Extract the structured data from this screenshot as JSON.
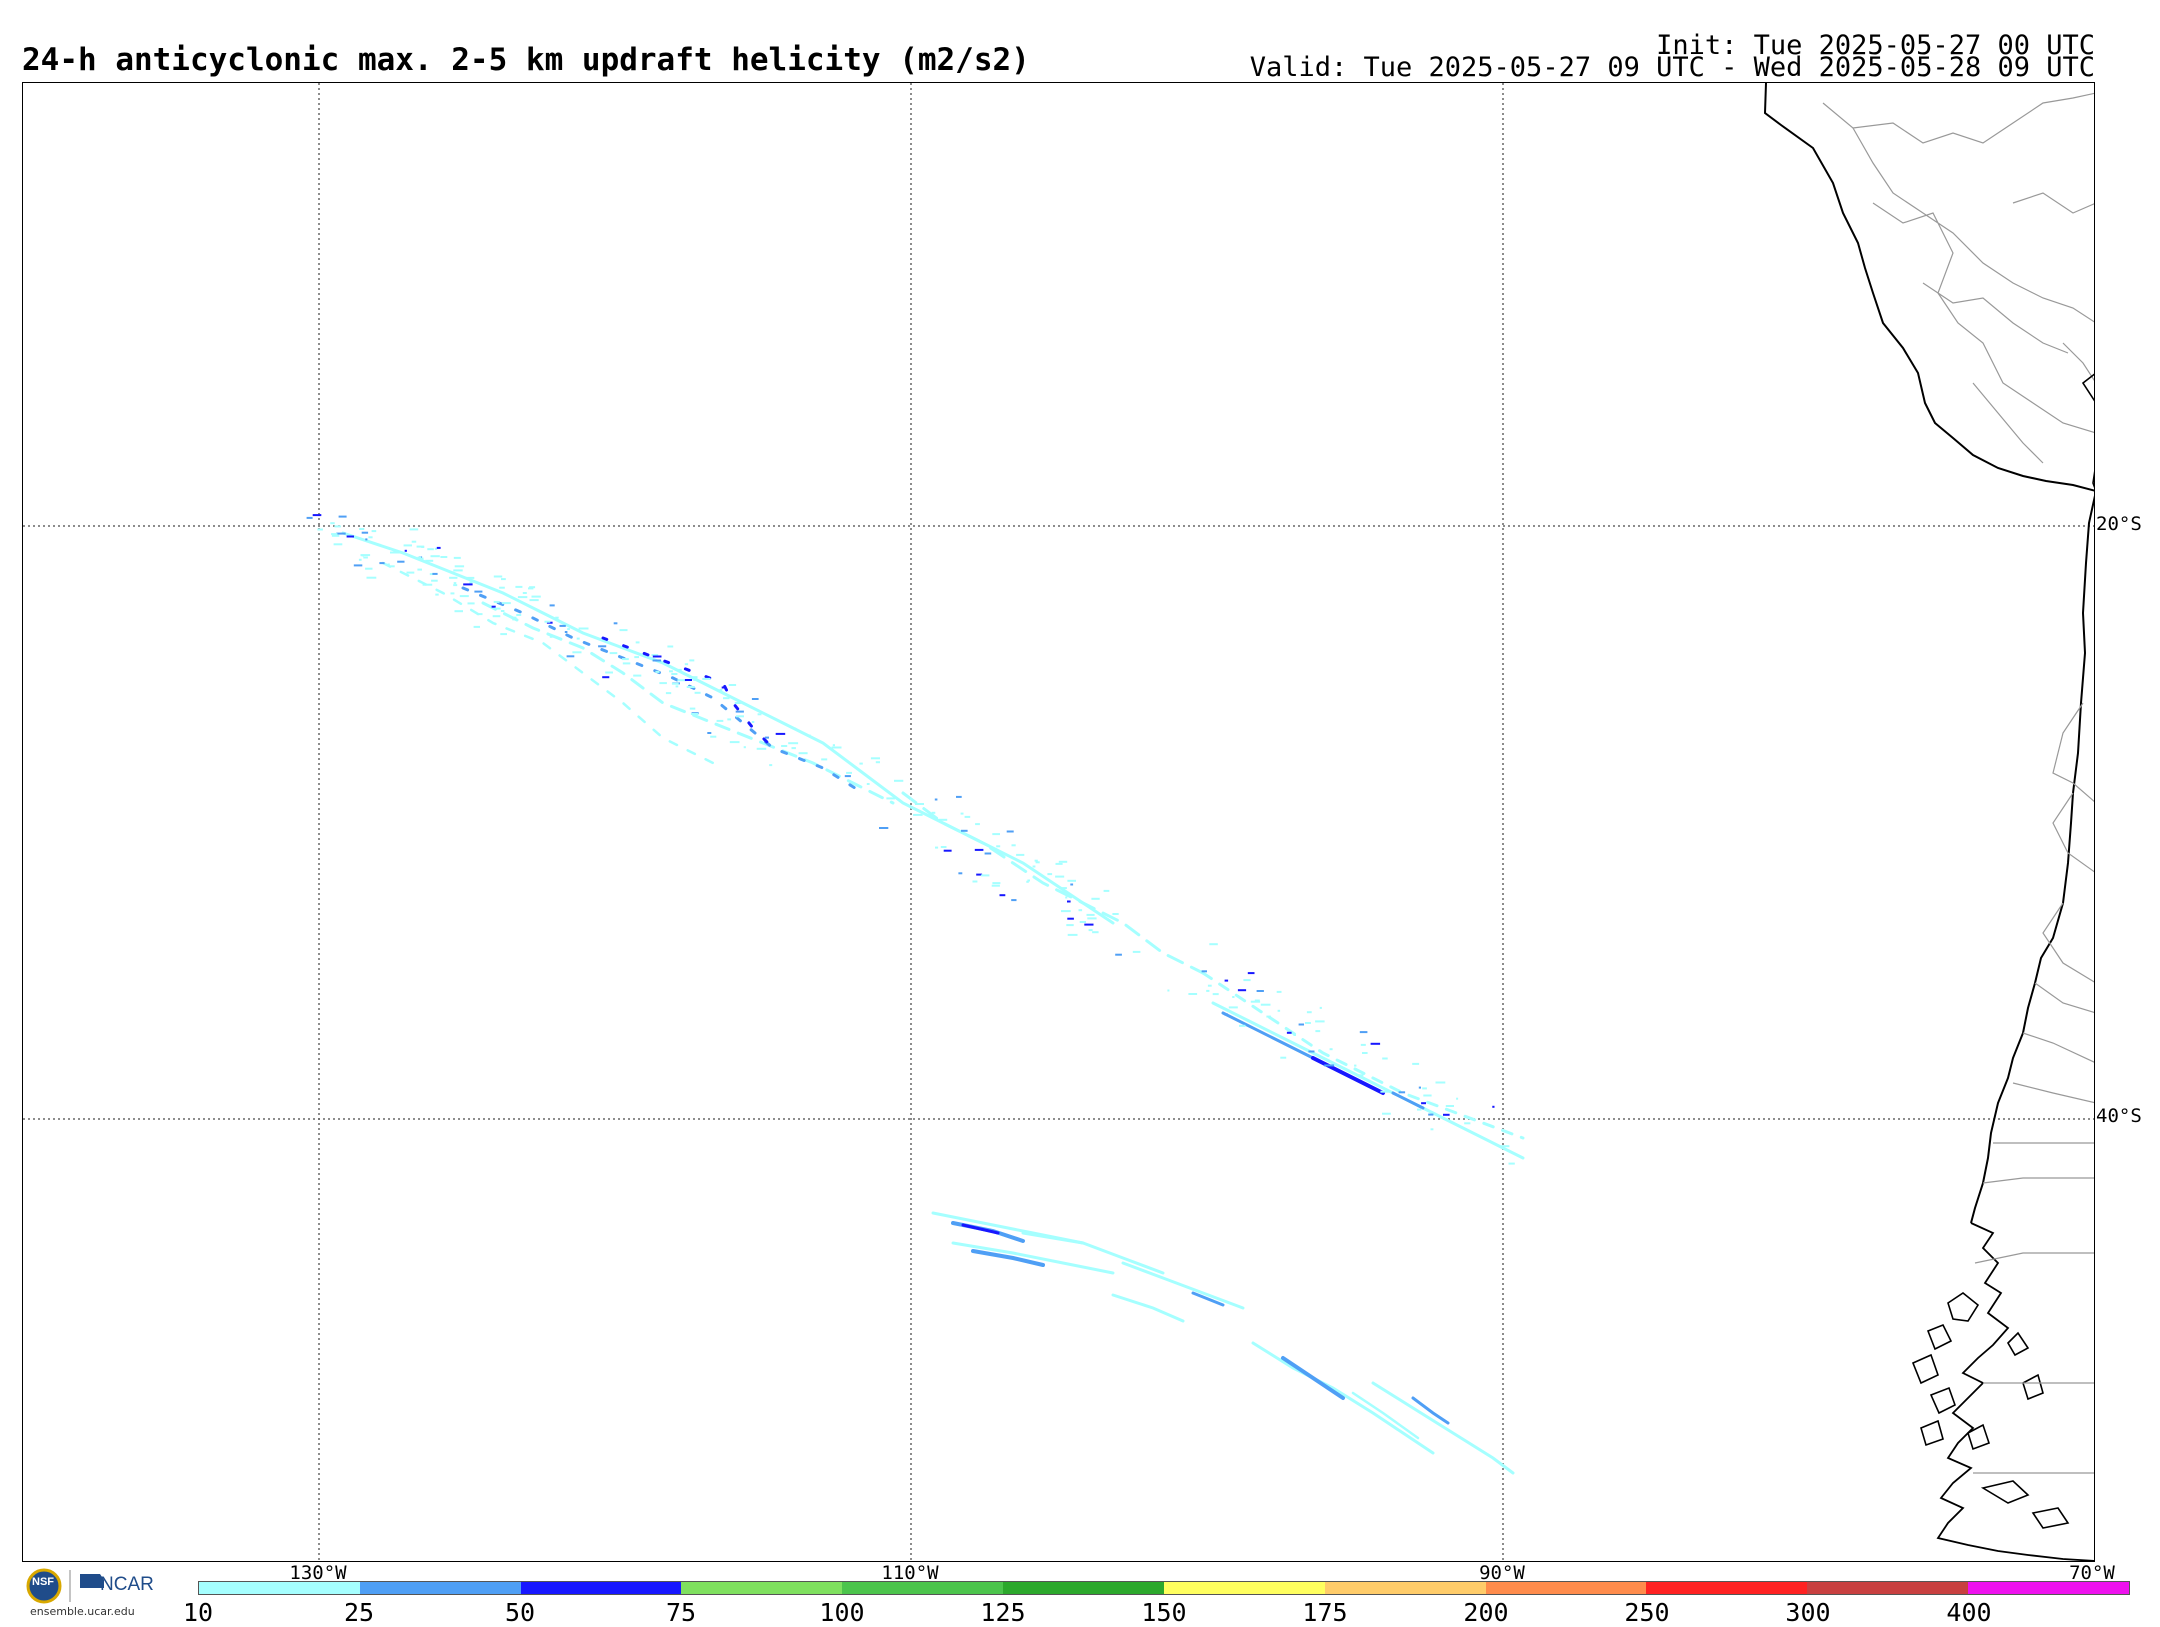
{
  "header": {
    "title": "24-h anticyclonic max. 2-5 km updraft helicity (m2/s2)",
    "init": "Init: Tue 2025-05-27 00 UTC",
    "valid": "Valid: Tue 2025-05-27 09 UTC - Wed 2025-05-28 09 UTC"
  },
  "map": {
    "lat_labels": [
      "20°S",
      "40°S"
    ],
    "lon_labels": [
      "130°W",
      "110°W",
      "90°W",
      "70°W"
    ],
    "land_outline_color": "#000000",
    "border_color": "#999999",
    "grid_color": "#666666"
  },
  "colorbar": {
    "labels": [
      "10",
      "25",
      "50",
      "75",
      "100",
      "125",
      "150",
      "175",
      "200",
      "250",
      "300",
      "400"
    ],
    "colors": [
      "#a5ffff",
      "#4f9ff5",
      "#1717ff",
      "#7fe05f",
      "#4cc44c",
      "#2ca82c",
      "#ffff5f",
      "#ffcc6a",
      "#ff8c4c",
      "#ff2222",
      "#c84040",
      "#ee11ee"
    ]
  },
  "logo": {
    "nsf": "NSF",
    "ncar": "NCAR",
    "url": "ensemble.ucar.edu"
  },
  "icons": [
    "nsf-logo-icon",
    "ncar-logo-icon"
  ]
}
